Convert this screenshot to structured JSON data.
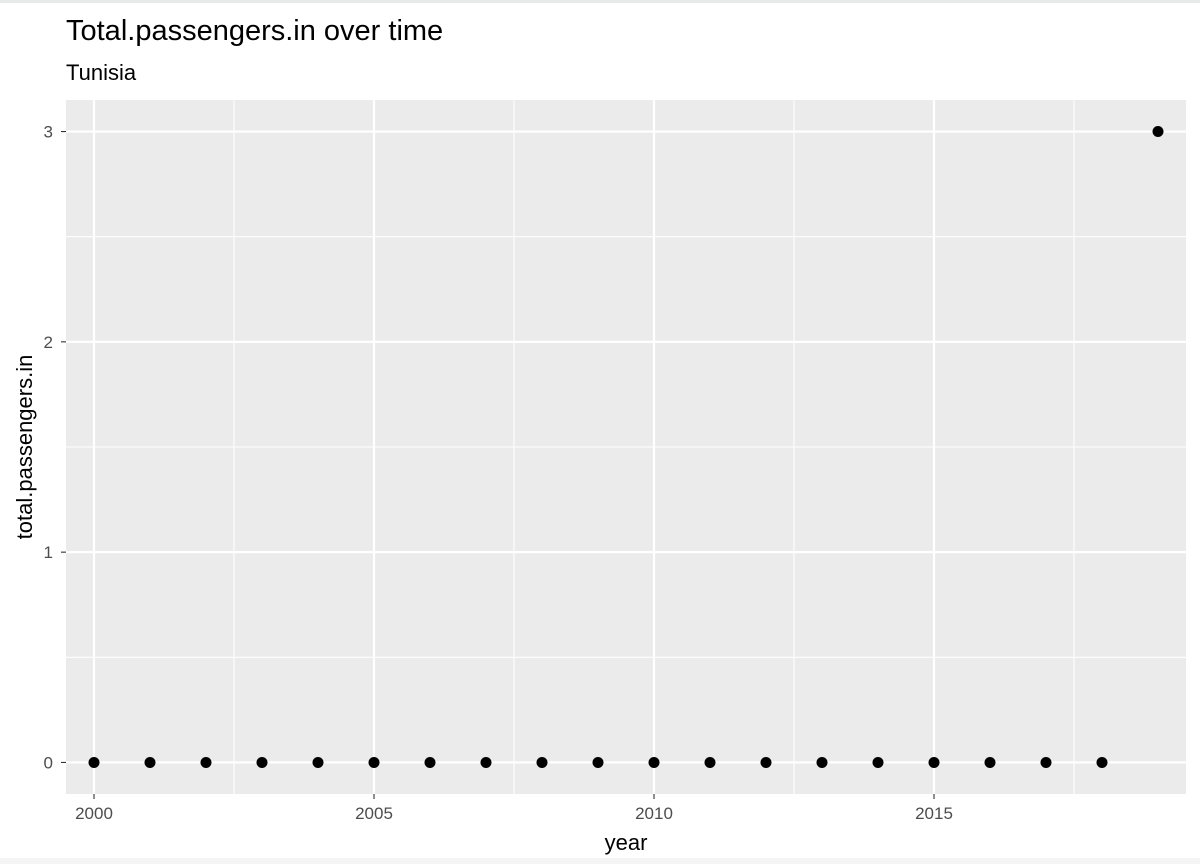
{
  "chart_data": {
    "type": "scatter",
    "title": "Total.passengers.in over time",
    "subtitle": "Tunisia",
    "xlabel": "year",
    "ylabel": "total.passengers.in",
    "x_ticks": [
      2000,
      2005,
      2010,
      2015
    ],
    "y_ticks": [
      0,
      1,
      2,
      3
    ],
    "xlim": [
      1999.5,
      2019.5
    ],
    "ylim": [
      -0.15,
      3.15
    ],
    "grid": true,
    "legend": "none",
    "colors": {
      "panel": "#ebebeb",
      "grid": "#ffffff",
      "point": "#000000",
      "tick_text": "#4d4d4d"
    },
    "series": [
      {
        "x": [
          2000,
          2001,
          2002,
          2003,
          2004,
          2005,
          2006,
          2007,
          2008,
          2009,
          2010,
          2011,
          2012,
          2013,
          2014,
          2015,
          2016,
          2017,
          2018,
          2019
        ],
        "y": [
          0,
          0,
          0,
          0,
          0,
          0,
          0,
          0,
          0,
          0,
          0,
          0,
          0,
          0,
          0,
          0,
          0,
          0,
          0,
          3
        ]
      }
    ]
  }
}
